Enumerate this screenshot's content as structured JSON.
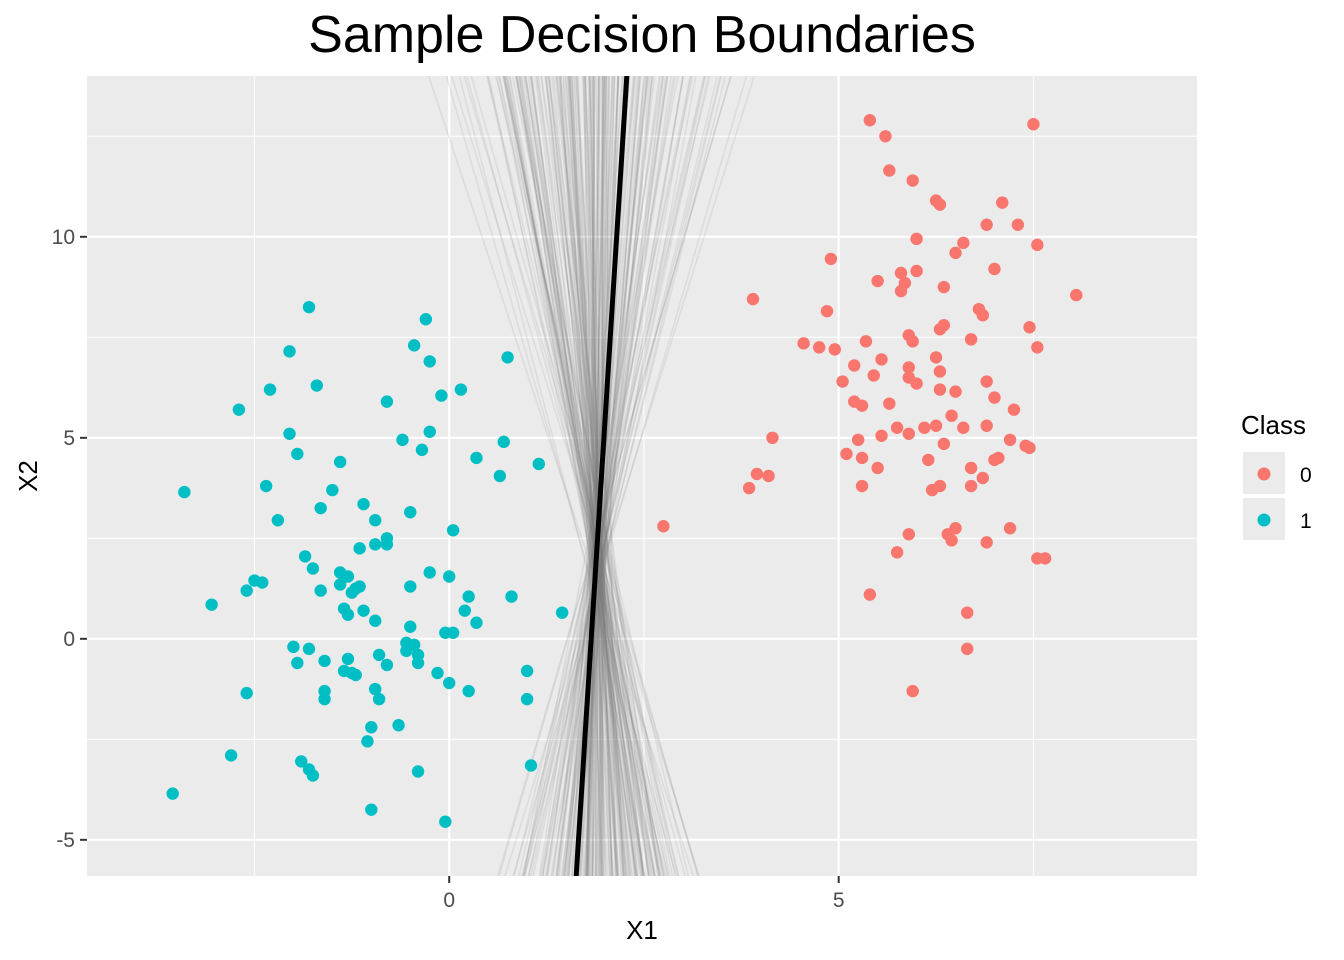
{
  "chart_data": {
    "type": "scatter",
    "title": "Sample Decision Boundaries",
    "xlabel": "X1",
    "ylabel": "X2",
    "xlim": [
      -4.65,
      9.6
    ],
    "ylim": [
      -5.9,
      14.0
    ],
    "x_ticks": [
      0,
      5
    ],
    "x_tick_labels": [
      "0",
      "5"
    ],
    "y_ticks": [
      -5,
      0,
      5,
      10
    ],
    "y_tick_labels": [
      "-5",
      "0",
      "5",
      "10"
    ],
    "grid": true,
    "legend": {
      "title": "Class",
      "placement": "right",
      "entries": [
        "0",
        "1"
      ]
    },
    "colors": {
      "panel": "#EBEBEB",
      "grid": "#FFFFFF",
      "class0": "#F8766D",
      "class1": "#00BFC4",
      "boundary": "#000000",
      "sample_lines": "#7f7f7f"
    },
    "series": [
      {
        "name": "0",
        "points": [
          [
            5.4,
            12.9
          ],
          [
            5.6,
            12.5
          ],
          [
            7.5,
            12.8
          ],
          [
            5.65,
            11.65
          ],
          [
            5.95,
            11.4
          ],
          [
            6.25,
            10.9
          ],
          [
            6.3,
            10.8
          ],
          [
            7.1,
            10.85
          ],
          [
            6.9,
            10.3
          ],
          [
            7.3,
            10.3
          ],
          [
            6.0,
            9.95
          ],
          [
            6.6,
            9.85
          ],
          [
            7.55,
            9.8
          ],
          [
            6.5,
            9.6
          ],
          [
            4.9,
            9.45
          ],
          [
            5.5,
            8.9
          ],
          [
            5.8,
            9.1
          ],
          [
            6.0,
            9.15
          ],
          [
            7.0,
            9.2
          ],
          [
            5.85,
            8.85
          ],
          [
            5.8,
            8.65
          ],
          [
            6.35,
            8.75
          ],
          [
            3.9,
            8.45
          ],
          [
            8.05,
            8.55
          ],
          [
            4.85,
            8.15
          ],
          [
            6.8,
            8.2
          ],
          [
            6.85,
            8.05
          ],
          [
            6.35,
            7.8
          ],
          [
            6.3,
            7.7
          ],
          [
            7.45,
            7.75
          ],
          [
            5.9,
            7.55
          ],
          [
            6.7,
            7.45
          ],
          [
            4.55,
            7.35
          ],
          [
            4.75,
            7.25
          ],
          [
            4.95,
            7.2
          ],
          [
            5.35,
            7.4
          ],
          [
            5.95,
            7.4
          ],
          [
            7.55,
            7.25
          ],
          [
            6.25,
            7.0
          ],
          [
            5.55,
            6.95
          ],
          [
            5.2,
            6.8
          ],
          [
            5.9,
            6.75
          ],
          [
            6.3,
            6.65
          ],
          [
            5.45,
            6.55
          ],
          [
            5.9,
            6.5
          ],
          [
            6.0,
            6.35
          ],
          [
            5.05,
            6.4
          ],
          [
            6.9,
            6.4
          ],
          [
            6.5,
            6.15
          ],
          [
            6.3,
            6.2
          ],
          [
            7.0,
            6.0
          ],
          [
            5.2,
            5.9
          ],
          [
            5.3,
            5.8
          ],
          [
            5.65,
            5.85
          ],
          [
            7.25,
            5.7
          ],
          [
            6.45,
            5.55
          ],
          [
            5.75,
            5.25
          ],
          [
            6.1,
            5.25
          ],
          [
            6.25,
            5.3
          ],
          [
            6.6,
            5.25
          ],
          [
            6.9,
            5.3
          ],
          [
            5.55,
            5.05
          ],
          [
            5.25,
            4.95
          ],
          [
            5.9,
            5.1
          ],
          [
            4.15,
            5.0
          ],
          [
            7.2,
            4.95
          ],
          [
            6.35,
            4.85
          ],
          [
            7.4,
            4.8
          ],
          [
            7.45,
            4.75
          ],
          [
            5.1,
            4.6
          ],
          [
            5.3,
            4.5
          ],
          [
            6.15,
            4.45
          ],
          [
            7.0,
            4.45
          ],
          [
            7.05,
            4.5
          ],
          [
            5.5,
            4.25
          ],
          [
            6.7,
            4.25
          ],
          [
            3.95,
            4.1
          ],
          [
            4.1,
            4.05
          ],
          [
            6.85,
            4.0
          ],
          [
            3.85,
            3.75
          ],
          [
            5.3,
            3.8
          ],
          [
            6.2,
            3.7
          ],
          [
            6.3,
            3.8
          ],
          [
            6.7,
            3.8
          ],
          [
            2.75,
            2.8
          ],
          [
            6.5,
            2.75
          ],
          [
            7.2,
            2.75
          ],
          [
            5.9,
            2.6
          ],
          [
            6.4,
            2.6
          ],
          [
            6.45,
            2.45
          ],
          [
            6.9,
            2.4
          ],
          [
            5.75,
            2.15
          ],
          [
            7.55,
            2.0
          ],
          [
            7.65,
            2.0
          ],
          [
            5.4,
            1.1
          ],
          [
            6.65,
            0.65
          ],
          [
            6.65,
            -0.25
          ],
          [
            5.95,
            -1.3
          ]
        ]
      },
      {
        "name": "1",
        "points": [
          [
            -1.8,
            8.25
          ],
          [
            -0.3,
            7.95
          ],
          [
            -0.45,
            7.3
          ],
          [
            -2.05,
            7.15
          ],
          [
            0.75,
            7.0
          ],
          [
            -0.25,
            6.9
          ],
          [
            -2.3,
            6.2
          ],
          [
            -1.7,
            6.3
          ],
          [
            -0.1,
            6.05
          ],
          [
            0.15,
            6.2
          ],
          [
            -0.8,
            5.9
          ],
          [
            -2.7,
            5.7
          ],
          [
            -2.05,
            5.1
          ],
          [
            -0.6,
            4.95
          ],
          [
            -0.25,
            5.15
          ],
          [
            0.7,
            4.9
          ],
          [
            -1.95,
            4.6
          ],
          [
            -0.35,
            4.7
          ],
          [
            0.35,
            4.5
          ],
          [
            -1.4,
            4.4
          ],
          [
            1.15,
            4.35
          ],
          [
            -3.4,
            3.65
          ],
          [
            -2.35,
            3.8
          ],
          [
            -1.5,
            3.7
          ],
          [
            0.65,
            4.05
          ],
          [
            -1.1,
            3.35
          ],
          [
            -1.65,
            3.25
          ],
          [
            -0.5,
            3.15
          ],
          [
            -2.2,
            2.95
          ],
          [
            -0.95,
            2.95
          ],
          [
            0.05,
            2.7
          ],
          [
            -0.8,
            2.5
          ],
          [
            -0.95,
            2.35
          ],
          [
            -0.8,
            2.35
          ],
          [
            -1.15,
            2.25
          ],
          [
            -1.85,
            2.05
          ],
          [
            -1.75,
            1.75
          ],
          [
            -1.4,
            1.65
          ],
          [
            -1.3,
            1.55
          ],
          [
            -0.25,
            1.65
          ],
          [
            0.0,
            1.55
          ],
          [
            -2.5,
            1.45
          ],
          [
            -2.4,
            1.4
          ],
          [
            -2.6,
            1.2
          ],
          [
            -1.4,
            1.35
          ],
          [
            -1.15,
            1.3
          ],
          [
            -1.2,
            1.25
          ],
          [
            -0.5,
            1.3
          ],
          [
            -1.65,
            1.2
          ],
          [
            -1.25,
            1.15
          ],
          [
            0.25,
            1.05
          ],
          [
            0.8,
            1.05
          ],
          [
            -3.05,
            0.85
          ],
          [
            -1.35,
            0.75
          ],
          [
            -1.1,
            0.7
          ],
          [
            -1.3,
            0.6
          ],
          [
            0.2,
            0.7
          ],
          [
            1.45,
            0.65
          ],
          [
            -0.95,
            0.45
          ],
          [
            0.35,
            0.4
          ],
          [
            -0.5,
            0.3
          ],
          [
            -0.05,
            0.15
          ],
          [
            0.05,
            0.15
          ],
          [
            -2.0,
            -0.2
          ],
          [
            -1.8,
            -0.25
          ],
          [
            -0.55,
            -0.1
          ],
          [
            -0.45,
            -0.15
          ],
          [
            -0.55,
            -0.3
          ],
          [
            -0.4,
            -0.4
          ],
          [
            -1.95,
            -0.6
          ],
          [
            -1.6,
            -0.55
          ],
          [
            -1.3,
            -0.5
          ],
          [
            -0.9,
            -0.4
          ],
          [
            -0.4,
            -0.6
          ],
          [
            -0.8,
            -0.65
          ],
          [
            -1.35,
            -0.8
          ],
          [
            -1.25,
            -0.85
          ],
          [
            -1.2,
            -0.9
          ],
          [
            -0.15,
            -0.85
          ],
          [
            1.0,
            -0.8
          ],
          [
            0.0,
            -1.1
          ],
          [
            -1.6,
            -1.3
          ],
          [
            -0.95,
            -1.25
          ],
          [
            0.25,
            -1.3
          ],
          [
            -2.6,
            -1.35
          ],
          [
            -1.6,
            -1.5
          ],
          [
            -0.9,
            -1.5
          ],
          [
            1.0,
            -1.5
          ],
          [
            -0.65,
            -2.15
          ],
          [
            -1.0,
            -2.2
          ],
          [
            -1.05,
            -2.55
          ],
          [
            -2.8,
            -2.9
          ],
          [
            -1.9,
            -3.05
          ],
          [
            -1.8,
            -3.25
          ],
          [
            -1.75,
            -3.4
          ],
          [
            -0.4,
            -3.3
          ],
          [
            1.05,
            -3.15
          ],
          [
            -3.55,
            -3.85
          ],
          [
            -1.0,
            -4.25
          ],
          [
            -0.05,
            -4.55
          ]
        ]
      }
    ],
    "boundary_line": [
      [
        2.28,
        14.0
      ],
      [
        1.63,
        -5.9
      ]
    ]
  }
}
